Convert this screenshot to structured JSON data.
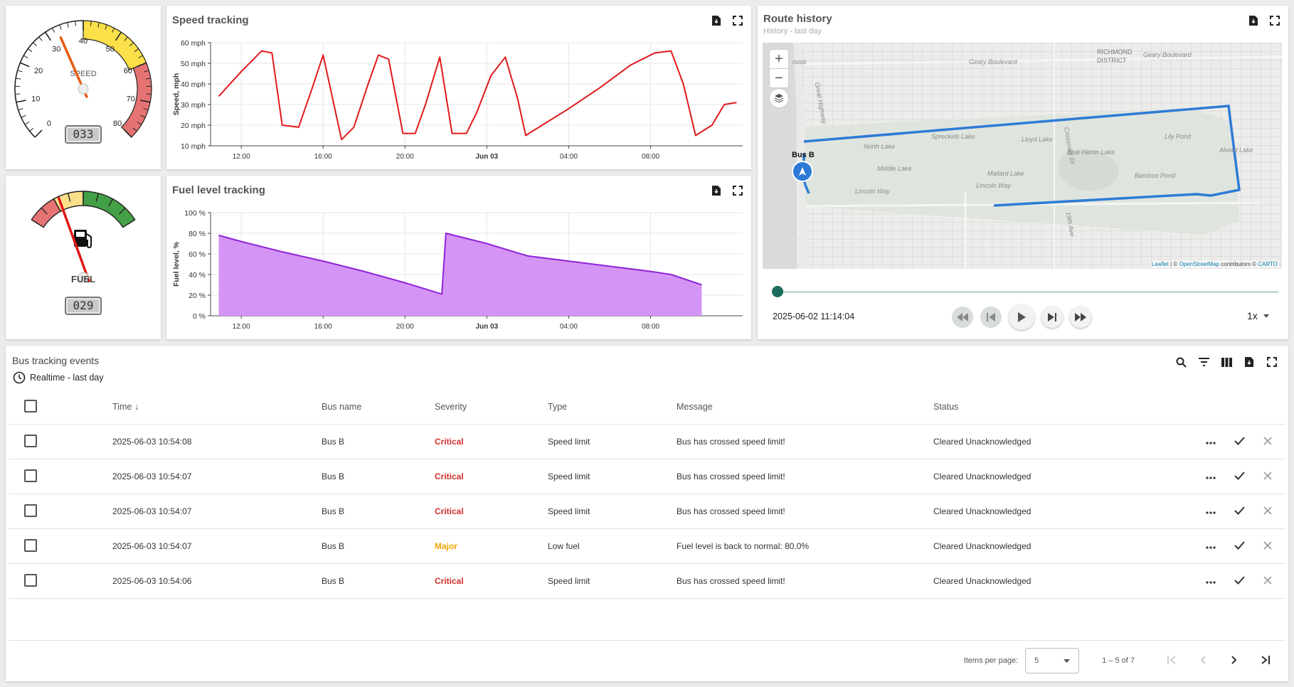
{
  "speed_gauge": {
    "ticks": [
      "0",
      "10",
      "20",
      "30",
      "40",
      "50",
      "60",
      "70",
      "80"
    ],
    "label": "SPEED",
    "value": 33,
    "value_text": "033",
    "max": 80,
    "colors": {
      "yellow": "#fbe04a",
      "red": "#e57373"
    }
  },
  "fuel_gauge": {
    "label": "FUEL",
    "value": 29,
    "value_text": "029",
    "max": 100,
    "colors": {
      "red": "#e57373",
      "yellow": "#fbe08a",
      "green": "#43a047"
    },
    "icon": "fuel-pump-icon"
  },
  "speed_chart": {
    "title": "Speed tracking",
    "icons": [
      "export-icon",
      "fullscreen-icon"
    ],
    "chart_data": {
      "type": "line",
      "ylabel": "Speed, mph",
      "y_ticks": [
        "10 mph",
        "20 mph",
        "30 mph",
        "40 mph",
        "50 mph",
        "60 mph"
      ],
      "x_ticks": [
        "12:00",
        "16:00",
        "20:00",
        "Jun 03",
        "04:00",
        "08:00"
      ],
      "ylim": [
        10,
        60
      ],
      "color": "#e0191b",
      "x": [
        10.9,
        12.0,
        13.0,
        13.5,
        14.0,
        14.8,
        15.4,
        16.0,
        16.9,
        17.5,
        18.2,
        18.7,
        19.2,
        19.9,
        20.5,
        21.0,
        21.7,
        22.3,
        23.0,
        23.5,
        24.2,
        24.9,
        25.5,
        25.9,
        26.7,
        28.0,
        29.5,
        31.0,
        32.2,
        33.0,
        33.6,
        34.2,
        35.0,
        35.6,
        36.2
      ],
      "values": [
        34,
        46,
        56,
        55,
        20,
        19,
        36,
        54,
        13,
        19,
        40,
        54,
        52,
        16,
        16,
        30,
        53,
        16,
        16,
        26,
        44,
        53,
        33,
        15,
        20,
        28,
        38,
        49,
        55,
        56,
        40,
        15,
        20,
        30,
        31
      ],
      "grid": true
    }
  },
  "fuel_chart": {
    "title": "Fuel level tracking",
    "icons": [
      "export-icon",
      "fullscreen-icon"
    ],
    "chart_data": {
      "type": "area",
      "ylabel": "Fuel level, %",
      "y_ticks": [
        "0 %",
        "20 %",
        "40 %",
        "60 %",
        "80 %",
        "100 %"
      ],
      "x_ticks": [
        "12:00",
        "16:00",
        "20:00",
        "Jun 03",
        "04:00",
        "08:00"
      ],
      "ylim": [
        0,
        100
      ],
      "color": "#8e24d8",
      "fill": "#d494f5",
      "x": [
        10.9,
        12.0,
        14.0,
        16.0,
        18.0,
        20.0,
        21.8,
        22.0,
        24.0,
        26.0,
        28.0,
        30.0,
        32.0,
        33.0,
        34.5
      ],
      "values": [
        78,
        72,
        62,
        53,
        43,
        32,
        21,
        80,
        70,
        58,
        53,
        48,
        43,
        40,
        30
      ],
      "grid": true
    }
  },
  "route": {
    "title": "Route history",
    "subtitle": "History - last day",
    "icons": [
      "export-icon",
      "fullscreen-icon"
    ],
    "map_labels": [
      "Geary Boulevard",
      "RICHMOND",
      "DISTRICT",
      "Geary Boulevard",
      "Spreckels Lake",
      "Lloyd Lake",
      "Lily Pond",
      "North Lake",
      "Blue Heron Lake",
      "Alvord Lake",
      "Middle Lake",
      "Mallard Lake",
      "Bamboo Pond",
      "Lincoln Way",
      "Lincoln Way",
      "Great Highway",
      "Crossover Dr",
      "19th Ave",
      "ouse"
    ],
    "marker_label": "Bus B",
    "attribution": {
      "leaflet": "Leaflet",
      "sep": " | © ",
      "osm": "OpenStreetMap",
      "mid": " contributors © ",
      "carto": "CARTO"
    },
    "zoom_in": "+",
    "zoom_out": "−",
    "timestamp": "2025-06-02 11:14:04",
    "speed": "1x",
    "progress": 0,
    "route_color": "#2e7bd6",
    "slider_color": "#1d6b5e"
  },
  "events": {
    "title": "Bus tracking events",
    "timewindow": "Realtime - last day",
    "columns": [
      "Time",
      "Bus name",
      "Severity",
      "Type",
      "Message",
      "Status"
    ],
    "rows": [
      {
        "time": "2025-06-03 10:54:08",
        "bus": "Bus B",
        "severity": "Critical",
        "type": "Speed limit",
        "message": "Bus has crossed speed limit!",
        "status": "Cleared Unacknowledged"
      },
      {
        "time": "2025-06-03 10:54:07",
        "bus": "Bus B",
        "severity": "Critical",
        "type": "Speed limit",
        "message": "Bus has crossed speed limit!",
        "status": "Cleared Unacknowledged"
      },
      {
        "time": "2025-06-03 10:54:07",
        "bus": "Bus B",
        "severity": "Critical",
        "type": "Speed limit",
        "message": "Bus has crossed speed limit!",
        "status": "Cleared Unacknowledged"
      },
      {
        "time": "2025-06-03 10:54:07",
        "bus": "Bus B",
        "severity": "Major",
        "type": "Low fuel",
        "message": "Fuel level is back to normal: 80.0%",
        "status": "Cleared Unacknowledged"
      },
      {
        "time": "2025-06-03 10:54:06",
        "bus": "Bus B",
        "severity": "Critical",
        "type": "Speed limit",
        "message": "Bus has crossed speed limit!",
        "status": "Cleared Unacknowledged"
      }
    ],
    "paginator": {
      "items_label": "Items per page:",
      "page_size": "5",
      "range": "1 – 5 of 7"
    },
    "colors": {
      "critical": "#d32f2f",
      "major": "#f2a700"
    }
  }
}
